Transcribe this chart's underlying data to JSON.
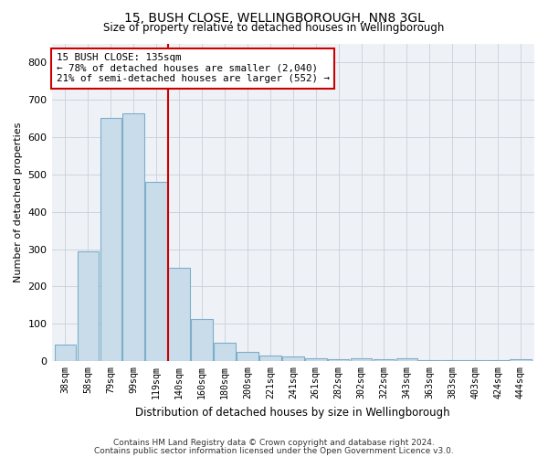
{
  "title1": "15, BUSH CLOSE, WELLINGBOROUGH, NN8 3GL",
  "title2": "Size of property relative to detached houses in Wellingborough",
  "xlabel": "Distribution of detached houses by size in Wellingborough",
  "ylabel": "Number of detached properties",
  "categories": [
    "38sqm",
    "58sqm",
    "79sqm",
    "99sqm",
    "119sqm",
    "140sqm",
    "160sqm",
    "180sqm",
    "200sqm",
    "221sqm",
    "241sqm",
    "261sqm",
    "282sqm",
    "302sqm",
    "322sqm",
    "343sqm",
    "363sqm",
    "383sqm",
    "403sqm",
    "424sqm",
    "444sqm"
  ],
  "values": [
    45,
    293,
    650,
    663,
    480,
    250,
    112,
    50,
    25,
    15,
    13,
    8,
    5,
    8,
    5,
    7,
    3,
    3,
    3,
    2,
    5
  ],
  "bar_color": "#c9dcea",
  "bar_edge_color": "#7eadc9",
  "vline_color": "#cc0000",
  "annotation_line1": "15 BUSH CLOSE: 135sqm",
  "annotation_line2": "← 78% of detached houses are smaller (2,040)",
  "annotation_line3": "21% of semi-detached houses are larger (552) →",
  "ylim": [
    0,
    850
  ],
  "yticks": [
    0,
    100,
    200,
    300,
    400,
    500,
    600,
    700,
    800
  ],
  "grid_color": "#c8d0dc",
  "background_color": "#eef2f7",
  "footer1": "Contains HM Land Registry data © Crown copyright and database right 2024.",
  "footer2": "Contains public sector information licensed under the Open Government Licence v3.0."
}
